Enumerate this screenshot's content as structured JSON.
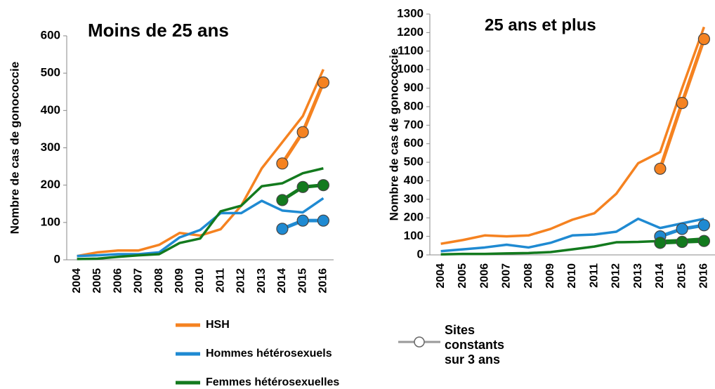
{
  "chart_data": [
    {
      "type": "line",
      "title": "Moins de 25 ans",
      "ylabel": "Nombre de cas de gonococcie",
      "categories": [
        "2004",
        "2005",
        "2006",
        "2007",
        "2008",
        "2009",
        "2010",
        "2011",
        "2012",
        "2013",
        "2014",
        "2015",
        "2016"
      ],
      "ylim": [
        0,
        600
      ],
      "yticks": [
        0,
        100,
        200,
        300,
        400,
        500,
        600
      ],
      "series": [
        {
          "name": "HSH",
          "color": "#f58220",
          "values": [
            10,
            20,
            25,
            25,
            40,
            72,
            65,
            82,
            145,
            245,
            315,
            385,
            510
          ]
        },
        {
          "name": "Hommes hétérosexuels",
          "color": "#1f8ad2",
          "values": [
            10,
            12,
            15,
            15,
            20,
            60,
            80,
            125,
            125,
            158,
            132,
            127,
            165
          ]
        },
        {
          "name": "Femmes hétérosexuelles",
          "color": "#137a1e",
          "values": [
            2,
            3,
            8,
            12,
            15,
            45,
            57,
            130,
            145,
            197,
            205,
            232,
            245
          ]
        },
        {
          "color": "#f58220",
          "markers": true,
          "values": [
            null,
            null,
            null,
            null,
            null,
            null,
            null,
            null,
            null,
            null,
            258,
            342,
            475
          ]
        },
        {
          "color": "#1f8ad2",
          "markers": true,
          "values": [
            null,
            null,
            null,
            null,
            null,
            null,
            null,
            null,
            null,
            null,
            83,
            105,
            105
          ]
        },
        {
          "color": "#137a1e",
          "markers": true,
          "values": [
            null,
            null,
            null,
            null,
            null,
            null,
            null,
            null,
            null,
            null,
            160,
            195,
            200
          ]
        }
      ]
    },
    {
      "type": "line",
      "title": "25 ans et plus",
      "ylabel": "Nombre de cas de gonococcie",
      "categories": [
        "2004",
        "2005",
        "2006",
        "2007",
        "2008",
        "2009",
        "2010",
        "2011",
        "2012",
        "2013",
        "2014",
        "2015",
        "2016"
      ],
      "ylim": [
        0,
        1300
      ],
      "yticks": [
        0,
        100,
        200,
        300,
        400,
        500,
        600,
        700,
        800,
        900,
        1000,
        1100,
        1200,
        1300
      ],
      "series": [
        {
          "color": "#f58220",
          "values": [
            60,
            80,
            105,
            100,
            105,
            140,
            190,
            225,
            330,
            495,
            555,
            900,
            1230
          ]
        },
        {
          "color": "#1f8ad2",
          "values": [
            20,
            30,
            40,
            55,
            40,
            65,
            105,
            110,
            125,
            195,
            145,
            170,
            195
          ]
        },
        {
          "color": "#137a1e",
          "values": [
            3,
            5,
            5,
            8,
            10,
            15,
            30,
            45,
            68,
            70,
            75,
            80,
            88
          ]
        },
        {
          "color": "#f58220",
          "markers": true,
          "values": [
            null,
            null,
            null,
            null,
            null,
            null,
            null,
            null,
            null,
            null,
            465,
            820,
            1165
          ]
        },
        {
          "color": "#1f8ad2",
          "markers": true,
          "values": [
            null,
            null,
            null,
            null,
            null,
            null,
            null,
            null,
            null,
            null,
            100,
            140,
            160
          ]
        },
        {
          "color": "#137a1e",
          "markers": true,
          "values": [
            null,
            null,
            null,
            null,
            null,
            null,
            null,
            null,
            null,
            null,
            65,
            70,
            75
          ]
        }
      ]
    }
  ],
  "legend_note": [
    "Sites",
    "constants",
    "sur 3 ans"
  ]
}
